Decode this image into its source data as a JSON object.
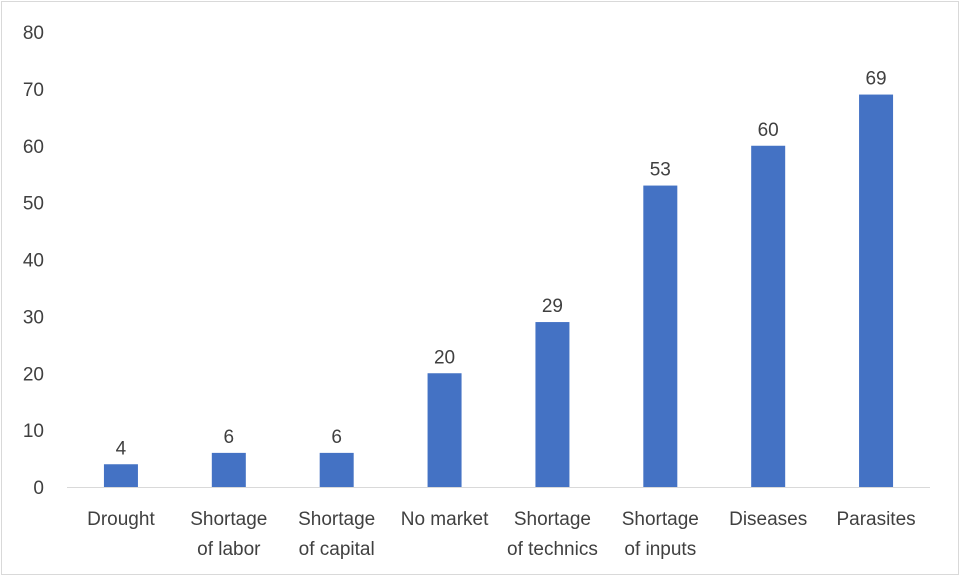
{
  "chart_data": {
    "type": "bar",
    "title": "",
    "xlabel": "",
    "ylabel": "",
    "categories": [
      [
        "Drought"
      ],
      [
        "Shortage",
        "of labor"
      ],
      [
        "Shortage",
        "of capital"
      ],
      [
        "No market"
      ],
      [
        "Shortage",
        "of technics"
      ],
      [
        "Shortage",
        "of inputs"
      ],
      [
        "Diseases"
      ],
      [
        "Parasites"
      ]
    ],
    "values": [
      4,
      6,
      6,
      20,
      29,
      53,
      60,
      69
    ],
    "ylim": [
      0,
      80
    ],
    "yticks": [
      0,
      10,
      20,
      30,
      40,
      50,
      60,
      70,
      80
    ],
    "grid": false,
    "legend": "none",
    "bar_color": "#4472C4",
    "axis_color": "#d9d9d9",
    "text_color": "#404040"
  }
}
